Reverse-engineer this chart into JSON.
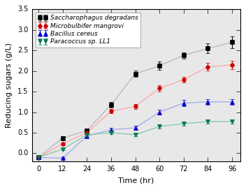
{
  "x": [
    0,
    12,
    24,
    36,
    48,
    60,
    72,
    84,
    96
  ],
  "saccharophagus": {
    "y": [
      -0.1,
      0.37,
      0.55,
      1.18,
      1.93,
      2.13,
      2.38,
      2.55,
      2.7
    ],
    "yerr": [
      0.02,
      0.04,
      0.05,
      0.07,
      0.08,
      0.1,
      0.08,
      0.12,
      0.15
    ],
    "color": "#000000",
    "label": "Saccharophagus degradans",
    "marker": "s",
    "linecolor": "#bbbbbb"
  },
  "microbulbifer": {
    "y": [
      -0.1,
      0.23,
      0.5,
      1.02,
      1.14,
      1.58,
      1.79,
      2.1,
      2.15
    ],
    "yerr": [
      0.02,
      0.03,
      0.05,
      0.05,
      0.06,
      0.08,
      0.07,
      0.09,
      0.1
    ],
    "color": "#cc0000",
    "label": "Microbulbifer mangrovi",
    "marker": "o",
    "linecolor": "#ffaaaa"
  },
  "bacillus": {
    "y": [
      -0.1,
      -0.12,
      0.42,
      0.57,
      0.62,
      1.0,
      1.22,
      1.25,
      1.25
    ],
    "yerr": [
      0.02,
      0.03,
      0.04,
      0.04,
      0.05,
      0.06,
      0.07,
      0.07,
      0.07
    ],
    "color": "#0000cc",
    "label": "Bacillus cereus",
    "marker": "^",
    "linecolor": "#aaaaee"
  },
  "paracoccus": {
    "y": [
      -0.1,
      0.1,
      0.45,
      0.5,
      0.45,
      0.65,
      0.72,
      0.77,
      0.77
    ],
    "yerr": [
      0.02,
      0.03,
      0.04,
      0.04,
      0.04,
      0.05,
      0.05,
      0.05,
      0.05
    ],
    "color": "#007755",
    "label": "Paracoccus sp. LL1",
    "marker": "v",
    "linecolor": "#88ccaa"
  },
  "xlabel": "Time (hr)",
  "ylabel": "Reducing sugars (g/L)",
  "xlim": [
    -3,
    100
  ],
  "ylim": [
    -0.2,
    3.5
  ],
  "xticks": [
    0,
    12,
    24,
    36,
    48,
    60,
    72,
    84,
    96
  ],
  "yticks": [
    0.0,
    0.5,
    1.0,
    1.5,
    2.0,
    2.5,
    3.0,
    3.5
  ],
  "legend_fontsize": 6.5,
  "axis_fontsize": 8,
  "tick_fontsize": 7,
  "fig_facecolor": "#e8e8e8",
  "axes_facecolor": "#e8e8e8"
}
